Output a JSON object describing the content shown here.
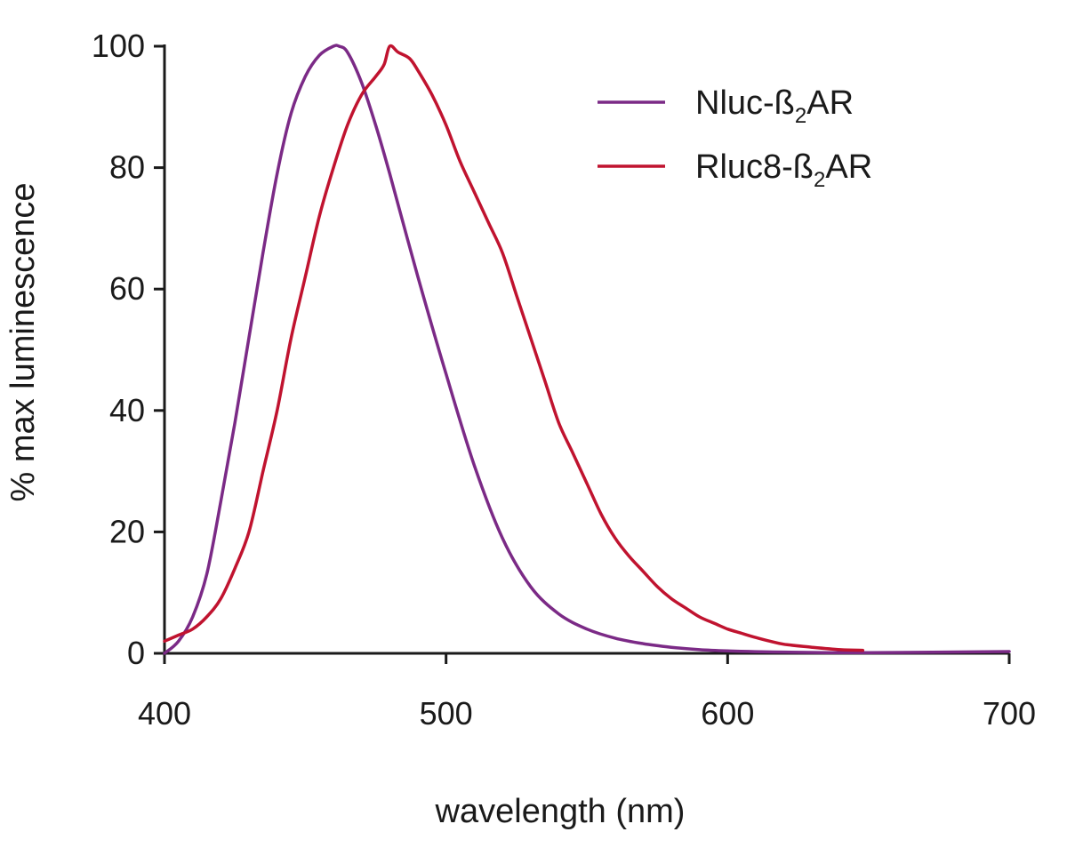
{
  "chart_data": {
    "type": "line",
    "title": "",
    "xlabel": "wavelength (nm)",
    "ylabel": "% max luminescence",
    "xlim": [
      400,
      700
    ],
    "ylim": [
      0,
      100
    ],
    "xticks": [
      400,
      500,
      600,
      700
    ],
    "yticks": [
      0,
      20,
      40,
      60,
      80,
      100
    ],
    "grid": false,
    "legend_position": "top-right",
    "series": [
      {
        "name": "Nluc-β2AR",
        "legend_base": "Nluc-ß",
        "legend_sub": "2",
        "legend_tail": "AR",
        "color": "#7b2a86",
        "x": [
          400,
          405,
          410,
          415,
          420,
          425,
          430,
          435,
          440,
          445,
          450,
          455,
          460,
          462,
          465,
          470,
          475,
          480,
          490,
          500,
          510,
          520,
          530,
          540,
          550,
          560,
          570,
          580,
          590,
          600,
          620,
          650,
          700
        ],
        "y": [
          0,
          2,
          6,
          13,
          25,
          38,
          52,
          66,
          79,
          89,
          95,
          98.5,
          100,
          100,
          99,
          94,
          87,
          79,
          62,
          46,
          31,
          19,
          11,
          6.5,
          4,
          2.5,
          1.6,
          1.0,
          0.6,
          0.4,
          0.2,
          0.1,
          0.3
        ]
      },
      {
        "name": "Rluc8-β2AR",
        "legend_base": "Rluc8-ß",
        "legend_sub": "2",
        "legend_tail": "AR",
        "color": "#c0132f",
        "x": [
          400,
          405,
          410,
          415,
          420,
          425,
          430,
          435,
          440,
          445,
          450,
          455,
          460,
          465,
          470,
          475,
          478,
          480,
          483,
          487,
          490,
          495,
          500,
          505,
          510,
          515,
          520,
          525,
          530,
          535,
          540,
          545,
          550,
          555,
          560,
          565,
          570,
          575,
          580,
          585,
          590,
          595,
          600,
          605,
          610,
          615,
          620,
          630,
          640,
          648
        ],
        "y": [
          2,
          3,
          4,
          6,
          9,
          14,
          20,
          30,
          40,
          52,
          62,
          72,
          80,
          87,
          92,
          95,
          97,
          100,
          99,
          98,
          96,
          92,
          87,
          81,
          76,
          71,
          66,
          59,
          52,
          45,
          38,
          33,
          28,
          23,
          19,
          16,
          13.5,
          11,
          9,
          7.5,
          6,
          5,
          4,
          3.3,
          2.6,
          2,
          1.5,
          1,
          0.6,
          0.5
        ]
      }
    ]
  }
}
